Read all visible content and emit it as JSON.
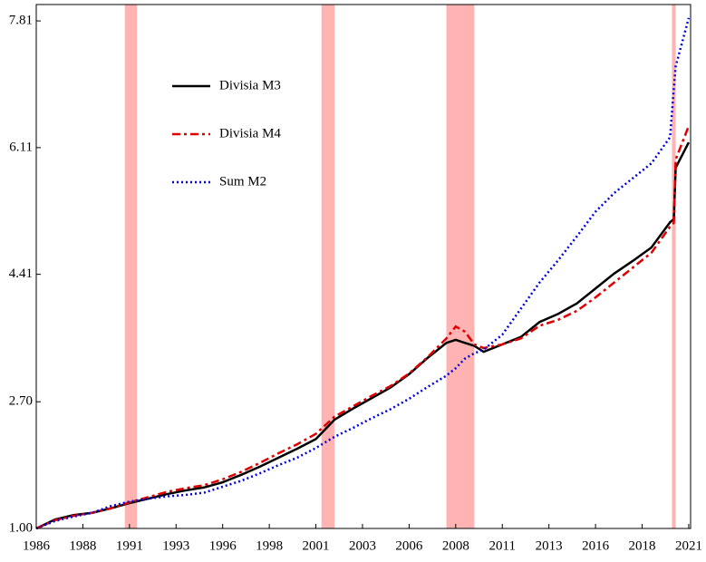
{
  "chart_data": {
    "type": "line",
    "x": [
      1986,
      1987,
      1988,
      1989,
      1990,
      1991,
      1992,
      1993,
      1994,
      1995,
      1996,
      1997,
      1998,
      1999,
      2000,
      2001,
      2002,
      2003,
      2004,
      2005,
      2006,
      2007,
      2008,
      2008.5,
      2009,
      2009.5,
      2010,
      2011,
      2012,
      2013,
      2014,
      2015,
      2016,
      2017,
      2018,
      2019,
      2020,
      2020.2,
      2020.3,
      2021
    ],
    "series": [
      {
        "name": "Divisia M3",
        "color": "#000000",
        "style": "solid",
        "values": [
          1.0,
          1.12,
          1.18,
          1.21,
          1.27,
          1.34,
          1.4,
          1.46,
          1.51,
          1.55,
          1.62,
          1.72,
          1.83,
          1.95,
          2.07,
          2.2,
          2.46,
          2.61,
          2.75,
          2.89,
          3.07,
          3.29,
          3.49,
          3.53,
          3.49,
          3.45,
          3.37,
          3.47,
          3.57,
          3.77,
          3.88,
          4.02,
          4.22,
          4.42,
          4.59,
          4.77,
          5.11,
          5.15,
          5.84,
          6.18
        ]
      },
      {
        "name": "Divisia M4",
        "color": "#e00000",
        "style": "dashdot",
        "values": [
          1.0,
          1.11,
          1.17,
          1.21,
          1.27,
          1.35,
          1.42,
          1.49,
          1.54,
          1.58,
          1.66,
          1.76,
          1.88,
          2.01,
          2.13,
          2.27,
          2.5,
          2.64,
          2.78,
          2.91,
          3.08,
          3.3,
          3.55,
          3.71,
          3.64,
          3.47,
          3.42,
          3.47,
          3.55,
          3.72,
          3.8,
          3.92,
          4.1,
          4.3,
          4.5,
          4.7,
          5.05,
          5.1,
          5.95,
          6.4
        ]
      },
      {
        "name": "Sum M2",
        "color": "#0000e0",
        "style": "dotted",
        "values": [
          1.0,
          1.1,
          1.16,
          1.21,
          1.3,
          1.36,
          1.4,
          1.43,
          1.45,
          1.48,
          1.56,
          1.64,
          1.74,
          1.85,
          1.95,
          2.08,
          2.23,
          2.35,
          2.48,
          2.6,
          2.74,
          2.9,
          3.05,
          3.15,
          3.28,
          3.35,
          3.4,
          3.6,
          3.95,
          4.3,
          4.6,
          4.92,
          5.25,
          5.5,
          5.7,
          5.9,
          6.25,
          6.9,
          7.2,
          7.85
        ]
      }
    ],
    "recessions": [
      [
        1990.75,
        1991.4
      ],
      [
        2001.3,
        2002.0
      ],
      [
        2008.0,
        2009.5
      ],
      [
        2020.1,
        2020.3
      ]
    ],
    "recession_color": "#ffb3b3",
    "xlim": [
      1986,
      2021.1
    ],
    "xticks": [
      1986,
      {
        "value": 1988.5,
        "label": "1988"
      },
      1991,
      {
        "value": 1993.5,
        "label": "1993"
      },
      1996,
      {
        "value": 1998.5,
        "label": "1998"
      },
      2001,
      {
        "value": 2003.5,
        "label": "2003"
      },
      2006,
      {
        "value": 2008.5,
        "label": "2008"
      },
      2011,
      {
        "value": 2013.5,
        "label": "2013"
      },
      2016,
      {
        "value": 2018.5,
        "label": "2018"
      },
      2021
    ],
    "ylim": [
      1,
      8.03
    ],
    "yticks": [
      {
        "value": 1,
        "label": "1.00"
      },
      {
        "value": 2.7,
        "label": "2.70"
      },
      4.41,
      6.11,
      7.81
    ],
    "legend": "upper left"
  }
}
